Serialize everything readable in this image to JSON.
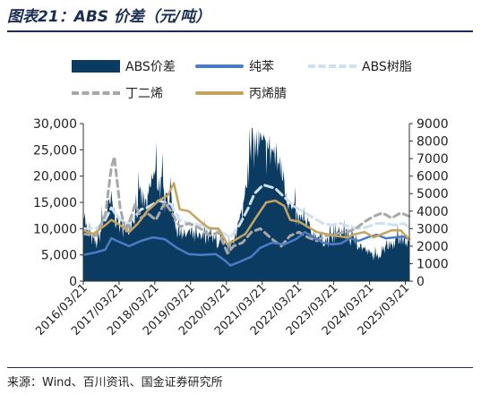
{
  "title": "图表21：ABS 价差（元/吨）",
  "source": "来源：Wind、百川资讯、国金证券研究所",
  "colors": {
    "spread": "#0c3b62",
    "benzene": "#4a7cc4",
    "abs": "#cfe0f1",
    "butadiene": "#a8a8a8",
    "acrylonitrile": "#c4a45e",
    "title": "#1a2e54"
  },
  "chart_data": {
    "type": "area+line",
    "x_ticks": [
      "2016/03/21",
      "2017/03/21",
      "2018/03/21",
      "2019/03/21",
      "2020/03/21",
      "2021/03/21",
      "2022/03/21",
      "2023/03/21",
      "2024/03/21",
      "2025/03/21"
    ],
    "x_range": [
      "2016/03/21",
      "2025/05/01"
    ],
    "y_left": {
      "range": [
        0,
        30000
      ],
      "ticks": [
        "0",
        "5,000",
        "10,000",
        "15,000",
        "20,000",
        "25,000",
        "30,000"
      ]
    },
    "y_right": {
      "range": [
        0,
        9000
      ],
      "ticks": [
        "0",
        "1000",
        "2000",
        "3000",
        "4000",
        "5000",
        "6000",
        "7000",
        "8000",
        "9000"
      ]
    },
    "legend": [
      "ABS价差",
      "纯苯",
      "ABS树脂",
      "丁二烯",
      "丙烯腈"
    ],
    "series": [
      {
        "name": "ABS价差",
        "kind": "area",
        "axis": "left",
        "color_key": "spread",
        "points": [
          [
            "2016/03/21",
            14000
          ],
          [
            "2016/05/01",
            9000
          ],
          [
            "2016/08/01",
            7000
          ],
          [
            "2016/11/01",
            12000
          ],
          [
            "2017/01/01",
            15000
          ],
          [
            "2017/03/01",
            11000
          ],
          [
            "2017/06/01",
            9500
          ],
          [
            "2017/09/01",
            13000
          ],
          [
            "2017/11/01",
            16000
          ],
          [
            "2018/01/01",
            14000
          ],
          [
            "2018/03/01",
            20000
          ],
          [
            "2018/05/01",
            19000
          ],
          [
            "2018/07/01",
            15500
          ],
          [
            "2018/09/01",
            17000
          ],
          [
            "2018/11/01",
            9000
          ],
          [
            "2019/01/01",
            8500
          ],
          [
            "2019/03/01",
            9000
          ],
          [
            "2019/06/01",
            8000
          ],
          [
            "2019/09/01",
            8500
          ],
          [
            "2019/12/01",
            7500
          ],
          [
            "2020/03/01",
            6500
          ],
          [
            "2020/05/01",
            6000
          ],
          [
            "2020/07/01",
            9500
          ],
          [
            "2020/09/01",
            13000
          ],
          [
            "2020/11/01",
            22000
          ],
          [
            "2021/01/01",
            26000
          ],
          [
            "2021/03/01",
            25500
          ],
          [
            "2021/05/01",
            24000
          ],
          [
            "2021/07/01",
            25000
          ],
          [
            "2021/09/01",
            22000
          ],
          [
            "2021/11/01",
            19000
          ],
          [
            "2022/01/01",
            14000
          ],
          [
            "2022/03/01",
            12000
          ],
          [
            "2022/06/01",
            10500
          ],
          [
            "2022/09/01",
            9000
          ],
          [
            "2022/12/01",
            8000
          ],
          [
            "2023/03/01",
            7500
          ],
          [
            "2023/06/01",
            9500
          ],
          [
            "2023/09/01",
            8000
          ],
          [
            "2023/12/01",
            7000
          ],
          [
            "2024/03/01",
            5500
          ],
          [
            "2024/06/01",
            4500
          ],
          [
            "2024/09/01",
            6500
          ],
          [
            "2024/12/01",
            7500
          ],
          [
            "2025/03/01",
            8000
          ],
          [
            "2025/05/01",
            7000
          ]
        ]
      },
      {
        "name": "纯苯",
        "kind": "line",
        "axis": "right",
        "color_key": "benzene",
        "points": [
          [
            "2016/03/21",
            1500
          ],
          [
            "2016/08/01",
            1650
          ],
          [
            "2016/11/01",
            1800
          ],
          [
            "2017/01/01",
            2450
          ],
          [
            "2017/03/01",
            2300
          ],
          [
            "2017/07/01",
            2000
          ],
          [
            "2017/11/01",
            2300
          ],
          [
            "2018/03/01",
            2500
          ],
          [
            "2018/07/01",
            2400
          ],
          [
            "2018/11/01",
            1900
          ],
          [
            "2019/03/01",
            1550
          ],
          [
            "2019/07/01",
            1500
          ],
          [
            "2019/12/01",
            1550
          ],
          [
            "2020/03/01",
            1200
          ],
          [
            "2020/05/01",
            900
          ],
          [
            "2020/08/01",
            1100
          ],
          [
            "2020/12/01",
            1400
          ],
          [
            "2021/03/01",
            1900
          ],
          [
            "2021/07/01",
            2200
          ],
          [
            "2021/11/01",
            2100
          ],
          [
            "2022/03/01",
            2400
          ],
          [
            "2022/06/01",
            2800
          ],
          [
            "2022/09/01",
            2500
          ],
          [
            "2022/12/01",
            2200
          ],
          [
            "2023/03/01",
            2100
          ],
          [
            "2023/06/01",
            2150
          ],
          [
            "2023/09/01",
            2450
          ],
          [
            "2023/12/01",
            2300
          ],
          [
            "2024/03/01",
            2500
          ],
          [
            "2024/06/01",
            2650
          ],
          [
            "2024/09/01",
            2450
          ],
          [
            "2024/12/01",
            2500
          ],
          [
            "2025/03/01",
            2550
          ],
          [
            "2025/05/01",
            2400
          ]
        ]
      },
      {
        "name": "ABS树脂",
        "kind": "dashed",
        "axis": "right",
        "color_key": "abs",
        "points": [
          [
            "2016/03/21",
            3000
          ],
          [
            "2016/08/01",
            3000
          ],
          [
            "2016/11/01",
            3500
          ],
          [
            "2017/01/01",
            4200
          ],
          [
            "2017/03/01",
            3700
          ],
          [
            "2017/06/01",
            3300
          ],
          [
            "2017/09/01",
            3700
          ],
          [
            "2017/11/01",
            4100
          ],
          [
            "2018/01/01",
            4200
          ],
          [
            "2018/05/01",
            4600
          ],
          [
            "2018/09/01",
            4400
          ],
          [
            "2018/12/01",
            3500
          ],
          [
            "2019/03/01",
            3300
          ],
          [
            "2019/07/01",
            3200
          ],
          [
            "2019/12/01",
            3000
          ],
          [
            "2020/03/01",
            2700
          ],
          [
            "2020/05/01",
            2500
          ],
          [
            "2020/08/01",
            3200
          ],
          [
            "2020/11/01",
            4200
          ],
          [
            "2021/01/01",
            5000
          ],
          [
            "2021/04/01",
            5500
          ],
          [
            "2021/08/01",
            5300
          ],
          [
            "2021/11/01",
            4800
          ],
          [
            "2022/03/01",
            4200
          ],
          [
            "2022/06/01",
            3900
          ],
          [
            "2022/09/01",
            3600
          ],
          [
            "2022/12/01",
            3300
          ],
          [
            "2023/03/01",
            3200
          ],
          [
            "2023/06/01",
            3300
          ],
          [
            "2023/09/01",
            3100
          ],
          [
            "2023/12/01",
            3000
          ],
          [
            "2024/03/01",
            3100
          ],
          [
            "2024/06/01",
            3300
          ],
          [
            "2024/09/01",
            3300
          ],
          [
            "2024/12/01",
            3200
          ],
          [
            "2025/03/01",
            3300
          ],
          [
            "2025/05/01",
            3100
          ]
        ]
      },
      {
        "name": "丁二烯",
        "kind": "dashed",
        "axis": "right",
        "color_key": "butadiene",
        "points": [
          [
            "2016/03/21",
            2700
          ],
          [
            "2016/08/01",
            2600
          ],
          [
            "2016/11/01",
            3800
          ],
          [
            "2017/01/01",
            6500
          ],
          [
            "2017/02/01",
            7100
          ],
          [
            "2017/04/01",
            4200
          ],
          [
            "2017/06/01",
            2800
          ],
          [
            "2017/09/01",
            4400
          ],
          [
            "2017/11/01",
            3600
          ],
          [
            "2018/01/01",
            3900
          ],
          [
            "2018/04/01",
            3500
          ],
          [
            "2018/07/01",
            4500
          ],
          [
            "2018/09/01",
            4000
          ],
          [
            "2018/12/01",
            3100
          ],
          [
            "2019/03/01",
            3300
          ],
          [
            "2019/07/01",
            3000
          ],
          [
            "2019/10/01",
            2600
          ],
          [
            "2020/01/01",
            2800
          ],
          [
            "2020/04/01",
            1600
          ],
          [
            "2020/06/01",
            2000
          ],
          [
            "2020/09/01",
            2200
          ],
          [
            "2020/12/01",
            2800
          ],
          [
            "2021/03/01",
            3000
          ],
          [
            "2021/07/01",
            2400
          ],
          [
            "2021/10/01",
            2000
          ],
          [
            "2022/01/01",
            2600
          ],
          [
            "2022/04/01",
            2800
          ],
          [
            "2022/07/01",
            2500
          ],
          [
            "2022/10/01",
            2300
          ],
          [
            "2023/01/01",
            2600
          ],
          [
            "2023/04/01",
            2700
          ],
          [
            "2023/08/01",
            2800
          ],
          [
            "2023/11/01",
            3000
          ],
          [
            "2024/02/01",
            3400
          ],
          [
            "2024/05/01",
            3700
          ],
          [
            "2024/08/01",
            3900
          ],
          [
            "2024/11/01",
            3600
          ],
          [
            "2025/02/01",
            3900
          ],
          [
            "2025/05/01",
            3700
          ]
        ]
      },
      {
        "name": "丙烯腈",
        "kind": "line",
        "axis": "right",
        "color_key": "acrylonitrile",
        "points": [
          [
            "2016/03/21",
            2900
          ],
          [
            "2016/07/01",
            2700
          ],
          [
            "2016/11/01",
            3200
          ],
          [
            "2017/01/01",
            3500
          ],
          [
            "2017/04/01",
            3200
          ],
          [
            "2017/07/01",
            2800
          ],
          [
            "2017/10/01",
            3300
          ],
          [
            "2018/01/01",
            4000
          ],
          [
            "2018/05/01",
            4600
          ],
          [
            "2018/08/01",
            4900
          ],
          [
            "2018/10/01",
            5600
          ],
          [
            "2018/12/01",
            4100
          ],
          [
            "2019/03/01",
            4000
          ],
          [
            "2019/07/01",
            3400
          ],
          [
            "2019/10/01",
            3000
          ],
          [
            "2020/01/01",
            3000
          ],
          [
            "2020/04/01",
            2100
          ],
          [
            "2020/07/01",
            2400
          ],
          [
            "2020/10/01",
            2700
          ],
          [
            "2021/01/01",
            3500
          ],
          [
            "2021/05/01",
            4500
          ],
          [
            "2021/08/01",
            4600
          ],
          [
            "2021/11/01",
            4300
          ],
          [
            "2022/01/01",
            3500
          ],
          [
            "2022/04/01",
            3400
          ],
          [
            "2022/07/01",
            3100
          ],
          [
            "2022/10/01",
            2800
          ],
          [
            "2023/01/01",
            2700
          ],
          [
            "2023/04/01",
            2600
          ],
          [
            "2023/08/01",
            2500
          ],
          [
            "2023/11/01",
            2700
          ],
          [
            "2024/02/01",
            2800
          ],
          [
            "2024/05/01",
            2500
          ],
          [
            "2024/08/01",
            2700
          ],
          [
            "2024/11/01",
            2900
          ],
          [
            "2025/02/01",
            2900
          ],
          [
            "2025/05/01",
            2400
          ]
        ]
      }
    ]
  }
}
